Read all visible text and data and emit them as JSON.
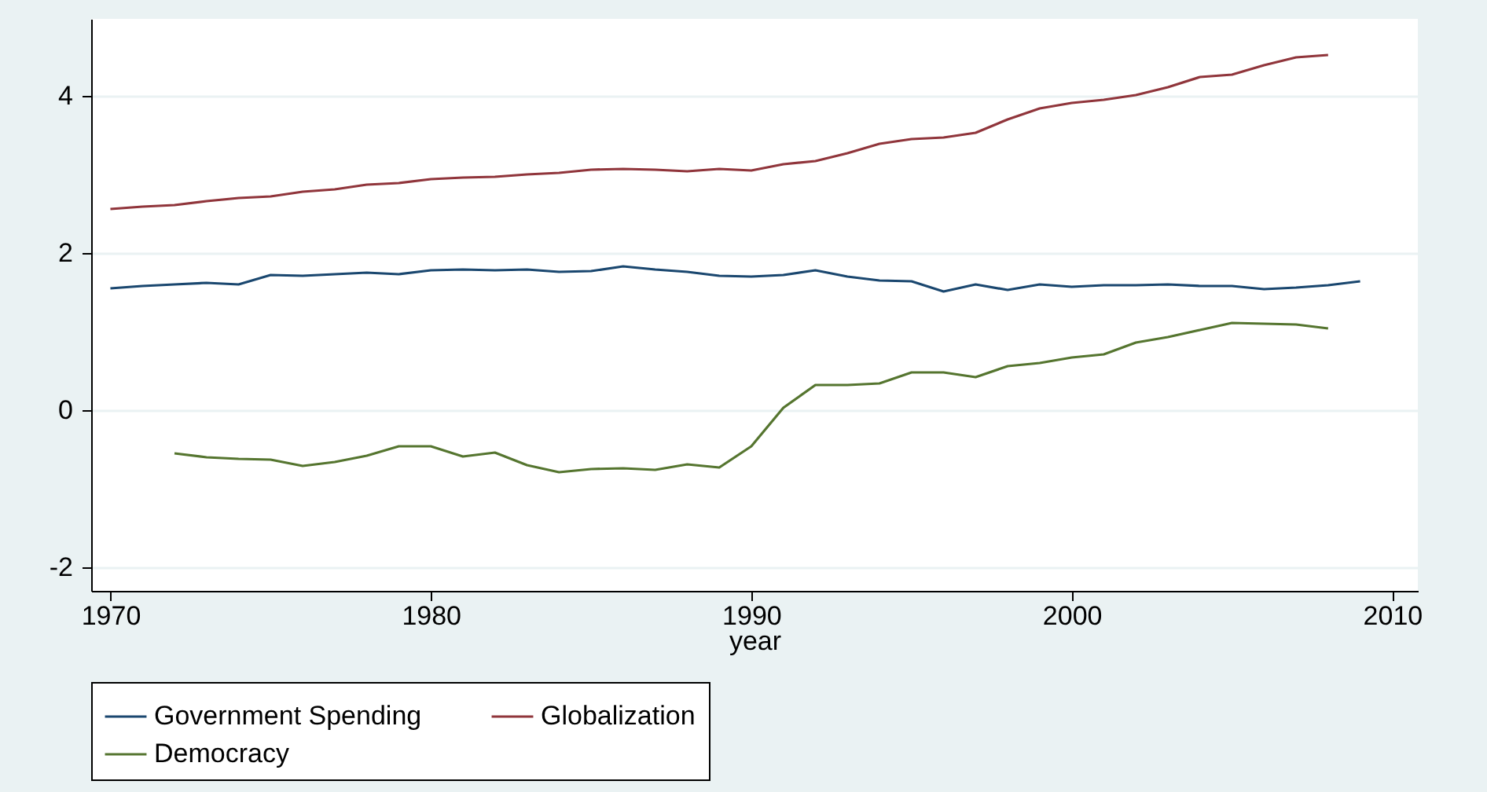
{
  "chart_data": {
    "type": "line",
    "xlabel": "year",
    "xlim": [
      1969.4,
      2010.8
    ],
    "ylim": [
      -2.3,
      4.98
    ],
    "xticks": [
      1970,
      1980,
      1990,
      2000,
      2010
    ],
    "yticks": [
      -2,
      0,
      2,
      4
    ],
    "grid": "y",
    "legend": "bottom",
    "series": [
      {
        "name": "Government Spending",
        "color": "#1a476f",
        "x": [
          1970,
          1971,
          1972,
          1973,
          1974,
          1975,
          1976,
          1977,
          1978,
          1979,
          1980,
          1981,
          1982,
          1983,
          1984,
          1985,
          1986,
          1987,
          1988,
          1989,
          1990,
          1991,
          1992,
          1993,
          1994,
          1995,
          1996,
          1997,
          1998,
          1999,
          2000,
          2001,
          2002,
          2003,
          2004,
          2005,
          2006,
          2007,
          2008,
          2009
        ],
        "values": [
          1.55,
          1.58,
          1.6,
          1.62,
          1.6,
          1.72,
          1.71,
          1.73,
          1.75,
          1.73,
          1.78,
          1.79,
          1.78,
          1.79,
          1.76,
          1.77,
          1.83,
          1.79,
          1.76,
          1.71,
          1.7,
          1.72,
          1.78,
          1.7,
          1.65,
          1.64,
          1.51,
          1.6,
          1.53,
          1.6,
          1.57,
          1.59,
          1.59,
          1.6,
          1.58,
          1.58,
          1.54,
          1.56,
          1.59,
          1.64
        ]
      },
      {
        "name": "Globalization",
        "color": "#90353b",
        "x": [
          1970,
          1971,
          1972,
          1973,
          1974,
          1975,
          1976,
          1977,
          1978,
          1979,
          1980,
          1981,
          1982,
          1983,
          1984,
          1985,
          1986,
          1987,
          1988,
          1989,
          1990,
          1991,
          1992,
          1993,
          1994,
          1995,
          1996,
          1997,
          1998,
          1999,
          2000,
          2001,
          2002,
          2003,
          2004,
          2005,
          2006,
          2007,
          2008
        ],
        "values": [
          2.56,
          2.59,
          2.61,
          2.66,
          2.7,
          2.72,
          2.78,
          2.81,
          2.87,
          2.89,
          2.94,
          2.96,
          2.97,
          3.0,
          3.02,
          3.06,
          3.07,
          3.06,
          3.04,
          3.07,
          3.05,
          3.13,
          3.17,
          3.27,
          3.39,
          3.45,
          3.47,
          3.53,
          3.7,
          3.84,
          3.91,
          3.95,
          4.01,
          4.11,
          4.24,
          4.27,
          4.39,
          4.49,
          4.52
        ]
      },
      {
        "name": "Democracy",
        "color": "#55752f",
        "x": [
          1972,
          1973,
          1974,
          1975,
          1976,
          1977,
          1978,
          1979,
          1980,
          1981,
          1982,
          1983,
          1984,
          1985,
          1986,
          1987,
          1988,
          1989,
          1990,
          1991,
          1992,
          1993,
          1994,
          1995,
          1996,
          1997,
          1998,
          1999,
          2000,
          2001,
          2002,
          2003,
          2004,
          2005,
          2006,
          2007,
          2008
        ],
        "values": [
          -0.55,
          -0.6,
          -0.62,
          -0.63,
          -0.71,
          -0.66,
          -0.58,
          -0.46,
          -0.46,
          -0.59,
          -0.54,
          -0.7,
          -0.79,
          -0.75,
          -0.74,
          -0.76,
          -0.69,
          -0.73,
          -0.46,
          0.03,
          0.32,
          0.32,
          0.34,
          0.48,
          0.48,
          0.42,
          0.56,
          0.6,
          0.67,
          0.71,
          0.86,
          0.93,
          1.02,
          1.11,
          1.1,
          1.09,
          1.04
        ]
      }
    ]
  }
}
